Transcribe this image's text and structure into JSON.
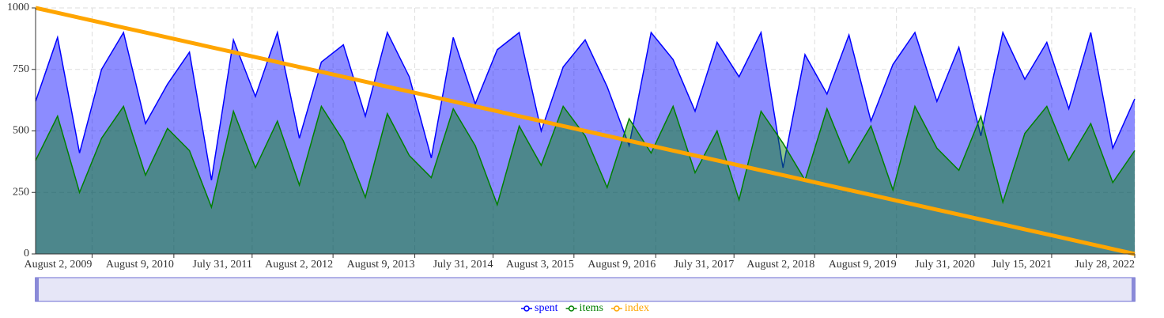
{
  "chart_data": {
    "type": "line",
    "x": [
      "2008-11-18",
      "2009-02-26",
      "2009-06-06",
      "2009-09-14",
      "2009-12-23",
      "2010-04-02",
      "2010-07-11",
      "2010-10-19",
      "2011-01-27",
      "2011-05-07",
      "2011-08-15",
      "2011-11-23",
      "2012-03-02",
      "2012-06-10",
      "2012-09-18",
      "2012-12-27",
      "2013-04-06",
      "2013-07-15",
      "2013-10-23",
      "2014-01-31",
      "2014-05-11",
      "2014-08-19",
      "2014-11-27",
      "2015-03-07",
      "2015-06-15",
      "2015-09-23",
      "2016-01-01",
      "2016-04-10",
      "2016-07-19",
      "2016-10-27",
      "2017-02-04",
      "2017-05-15",
      "2017-08-23",
      "2017-12-01",
      "2018-03-11",
      "2018-06-19",
      "2018-09-27",
      "2019-01-05",
      "2019-04-15",
      "2019-07-24",
      "2019-11-01",
      "2020-02-09",
      "2020-05-19",
      "2020-08-27",
      "2020-12-05",
      "2021-03-15",
      "2021-06-23",
      "2021-10-01",
      "2022-01-09",
      "2022-04-19",
      "2022-07-28"
    ],
    "series": [
      {
        "name": "spent",
        "color": "#0000ff",
        "fill": true,
        "values": [
          620,
          880,
          410,
          750,
          900,
          530,
          690,
          820,
          300,
          870,
          640,
          900,
          470,
          780,
          850,
          560,
          900,
          720,
          390,
          880,
          610,
          830,
          900,
          500,
          760,
          870,
          680,
          440,
          900,
          790,
          580,
          860,
          720,
          900,
          350,
          810,
          650,
          890,
          540,
          770,
          900,
          620,
          840,
          480,
          900,
          710,
          860,
          590,
          900,
          430,
          630
        ]
      },
      {
        "name": "items",
        "color": "#008000",
        "fill": true,
        "values": [
          380,
          560,
          250,
          470,
          600,
          320,
          510,
          420,
          190,
          580,
          350,
          540,
          280,
          600,
          460,
          230,
          570,
          400,
          310,
          590,
          440,
          200,
          520,
          360,
          600,
          480,
          270,
          550,
          410,
          600,
          330,
          500,
          220,
          580,
          450,
          300,
          590,
          370,
          520,
          260,
          600,
          430,
          340,
          560,
          210,
          490,
          600,
          380,
          530,
          290,
          420
        ]
      },
      {
        "name": "index",
        "color": "#ffa500",
        "fill": false,
        "values": [
          1000,
          980,
          960,
          940,
          920,
          900,
          880,
          860,
          840,
          820,
          800,
          780,
          760,
          740,
          720,
          700,
          680,
          660,
          640,
          620,
          600,
          580,
          560,
          540,
          520,
          500,
          480,
          460,
          440,
          420,
          400,
          380,
          360,
          340,
          320,
          300,
          280,
          260,
          240,
          220,
          200,
          180,
          160,
          140,
          120,
          100,
          80,
          60,
          40,
          20,
          0
        ]
      }
    ],
    "xlim": [
      "2008-11-18",
      "2022-07-28"
    ],
    "xticks": [
      {
        "value": "2009-08-02",
        "label": "August 2, 2009"
      },
      {
        "value": "2010-08-09",
        "label": "August 9, 2010"
      },
      {
        "value": "2011-07-31",
        "label": "July 31, 2011"
      },
      {
        "value": "2012-08-02",
        "label": "August 2, 2012"
      },
      {
        "value": "2013-08-09",
        "label": "August 9, 2013"
      },
      {
        "value": "2014-07-31",
        "label": "July 31, 2014"
      },
      {
        "value": "2015-08-03",
        "label": "August 3, 2015"
      },
      {
        "value": "2016-08-09",
        "label": "August 9, 2016"
      },
      {
        "value": "2017-07-31",
        "label": "July 31, 2017"
      },
      {
        "value": "2018-08-02",
        "label": "August 2, 2018"
      },
      {
        "value": "2019-08-09",
        "label": "August 9, 2019"
      },
      {
        "value": "2020-07-31",
        "label": "July 31, 2020"
      },
      {
        "value": "2021-07-15",
        "label": "July 15, 2021"
      },
      {
        "value": "2022-07-28",
        "label": "July 28, 2022"
      }
    ],
    "ylim": [
      0,
      1000
    ],
    "yticks": [
      0,
      250,
      500,
      750,
      1000
    ],
    "grid": true
  }
}
